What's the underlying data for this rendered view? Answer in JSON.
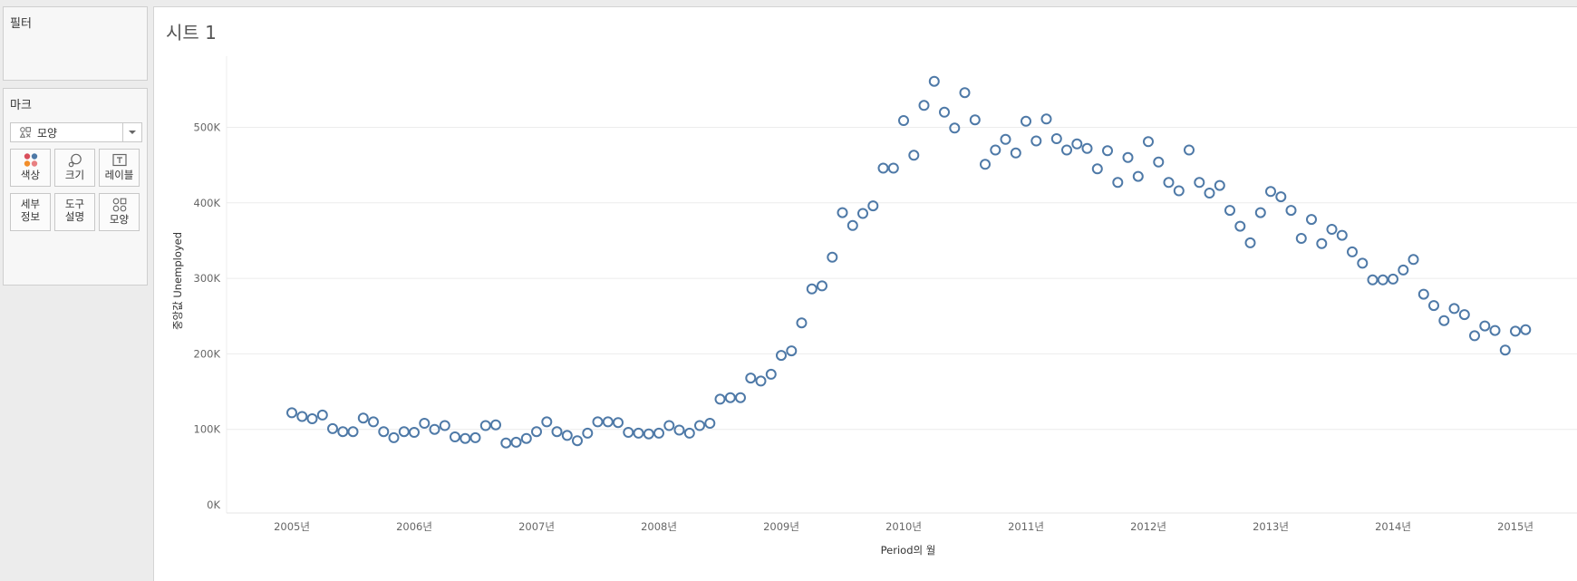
{
  "sidebar": {
    "filters_title": "필터",
    "marks_title": "마크",
    "mark_type": "모양",
    "buttons": {
      "color": "색상",
      "size": "크기",
      "label": "레이블",
      "detail_line1": "세부",
      "detail_line2": "정보",
      "tooltip_line1": "도구",
      "tooltip_line2": "설명",
      "shape": "모양"
    }
  },
  "sheet": {
    "title": "시트 1"
  },
  "colors": {
    "mark_stroke": "#4e79a7",
    "grid": "#ececec"
  },
  "chart_data": {
    "type": "scatter",
    "marker": "open-circle",
    "xlabel": "Period의 월",
    "ylabel": "중앙값 Unemployed",
    "x_tick_labels": [
      "2005년",
      "2006년",
      "2007년",
      "2008년",
      "2009년",
      "2010년",
      "2011년",
      "2012년",
      "2013년",
      "2014년",
      "2015년"
    ],
    "y_ticks": [
      0,
      100000,
      200000,
      300000,
      400000,
      500000
    ],
    "y_tick_labels": [
      "0K",
      "100K",
      "200K",
      "300K",
      "400K",
      "500K"
    ],
    "ylim": [
      0,
      570000
    ],
    "xlim": [
      "2004-07",
      "2015-06"
    ],
    "grid": "horizontal",
    "x": [
      "2005-01",
      "2005-02",
      "2005-03",
      "2005-04",
      "2005-05",
      "2005-06",
      "2005-07",
      "2005-08",
      "2005-09",
      "2005-10",
      "2005-11",
      "2005-12",
      "2006-01",
      "2006-02",
      "2006-03",
      "2006-04",
      "2006-05",
      "2006-06",
      "2006-07",
      "2006-08",
      "2006-09",
      "2006-10",
      "2006-11",
      "2006-12",
      "2007-01",
      "2007-02",
      "2007-03",
      "2007-04",
      "2007-05",
      "2007-06",
      "2007-07",
      "2007-08",
      "2007-09",
      "2007-10",
      "2007-11",
      "2007-12",
      "2008-01",
      "2008-02",
      "2008-03",
      "2008-04",
      "2008-05",
      "2008-06",
      "2008-07",
      "2008-08",
      "2008-09",
      "2008-10",
      "2008-11",
      "2008-12",
      "2009-01",
      "2009-02",
      "2009-03",
      "2009-04",
      "2009-05",
      "2009-06",
      "2009-07",
      "2009-08",
      "2009-09",
      "2009-10",
      "2009-11",
      "2009-12",
      "2010-01",
      "2010-02",
      "2010-03",
      "2010-04",
      "2010-05",
      "2010-06",
      "2010-07",
      "2010-08",
      "2010-09",
      "2010-10",
      "2010-11",
      "2010-12",
      "2011-01",
      "2011-02",
      "2011-03",
      "2011-04",
      "2011-05",
      "2011-06",
      "2011-07",
      "2011-08",
      "2011-09",
      "2011-10",
      "2011-11",
      "2011-12",
      "2012-01",
      "2012-02",
      "2012-03",
      "2012-04",
      "2012-05",
      "2012-06",
      "2012-07",
      "2012-08",
      "2012-09",
      "2012-10",
      "2012-11",
      "2012-12",
      "2013-01",
      "2013-02",
      "2013-03",
      "2013-04",
      "2013-05",
      "2013-06",
      "2013-07",
      "2013-08",
      "2013-09",
      "2013-10",
      "2013-11",
      "2013-12",
      "2014-01",
      "2014-02",
      "2014-03",
      "2014-04",
      "2014-05",
      "2014-06",
      "2014-07",
      "2014-08",
      "2014-09",
      "2014-10",
      "2014-11",
      "2014-12",
      "2015-01",
      "2015-02"
    ],
    "y": [
      122000,
      117000,
      114000,
      119000,
      101000,
      97000,
      97000,
      115000,
      110000,
      97000,
      89000,
      97000,
      96000,
      108000,
      100000,
      105000,
      90000,
      88000,
      89000,
      105000,
      106000,
      82000,
      83000,
      88000,
      97000,
      110000,
      97000,
      92000,
      85000,
      95000,
      110000,
      110000,
      109000,
      96000,
      95000,
      94000,
      95000,
      105000,
      99000,
      95000,
      105000,
      108000,
      140000,
      142000,
      142000,
      168000,
      164000,
      173000,
      198000,
      204000,
      241000,
      286000,
      290000,
      328000,
      387000,
      370000,
      386000,
      396000,
      446000,
      446000,
      509000,
      463000,
      529000,
      561000,
      520000,
      499000,
      546000,
      510000,
      451000,
      470000,
      484000,
      466000,
      508000,
      482000,
      511000,
      485000,
      470000,
      478000,
      472000,
      445000,
      469000,
      427000,
      460000,
      435000,
      481000,
      454000,
      427000,
      416000,
      470000,
      427000,
      413000,
      423000,
      390000,
      369000,
      347000,
      387000,
      415000,
      408000,
      390000,
      353000,
      378000,
      346000,
      365000,
      357000,
      335000,
      320000,
      298000,
      298000,
      299000,
      311000,
      325000,
      279000,
      264000,
      244000,
      260000,
      252000,
      224000,
      237000,
      231000,
      205000,
      230000,
      232000
    ]
  }
}
